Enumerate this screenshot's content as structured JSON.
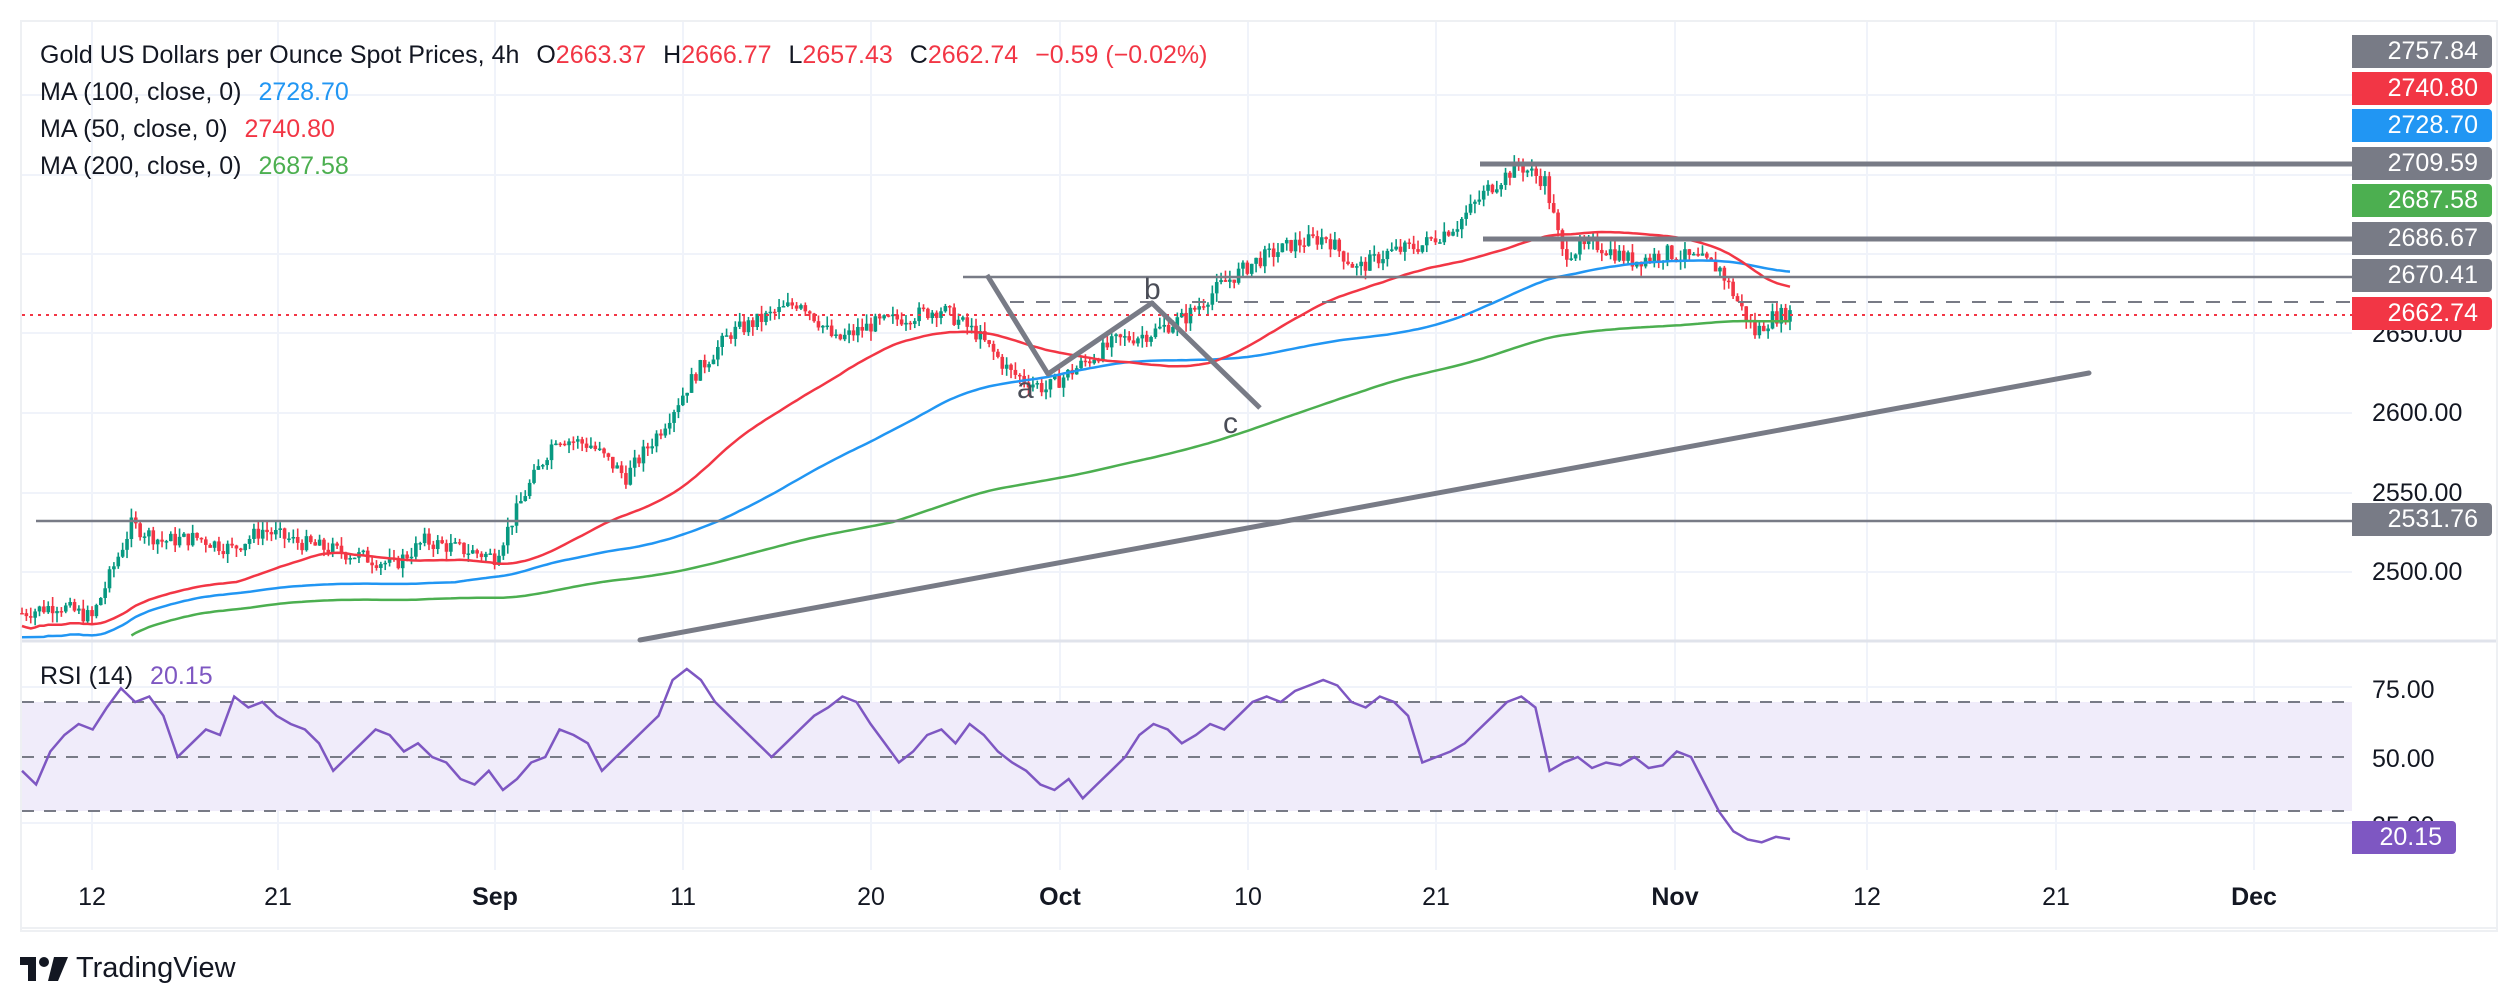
{
  "header": {
    "symbol_title": "Gold US Dollars per Ounce Spot Prices, 4h",
    "ohlc": [
      {
        "key": "O",
        "value": "2663.37"
      },
      {
        "key": "H",
        "value": "2666.77"
      },
      {
        "key": "L",
        "value": "2657.43"
      },
      {
        "key": "C",
        "value": "2662.74"
      }
    ],
    "change": "−0.59 (−0.02%)"
  },
  "indicators": [
    {
      "label": "MA (100, close, 0)",
      "value": "2728.70",
      "color": "#2196f3"
    },
    {
      "label": "MA (50, close, 0)",
      "value": "2740.80",
      "color": "#f23645"
    },
    {
      "label": "MA (200, close, 0)",
      "value": "2687.58",
      "color": "#4caf50"
    }
  ],
  "rsi": {
    "label": "RSI (14)",
    "value": "20.15",
    "color": "#7e57c2"
  },
  "colors": {
    "up": "#089981",
    "down": "#f23645",
    "drawing": "#787b86",
    "rsi_band": "#f0ecfa"
  },
  "price_tags": [
    {
      "value": "2757.84",
      "color": "#787b86"
    },
    {
      "value": "2740.80",
      "color": "#f23645"
    },
    {
      "value": "2728.70",
      "color": "#2196f3"
    },
    {
      "value": "2709.59",
      "color": "#787b86"
    },
    {
      "value": "2687.58",
      "color": "#4caf50"
    },
    {
      "value": "2686.67",
      "color": "#787b86"
    },
    {
      "value": "2670.41",
      "color": "#787b86"
    },
    {
      "value": "2662.74",
      "color": "#f23645"
    },
    {
      "value": "2531.76",
      "color": "#787b86"
    }
  ],
  "rsi_tag": {
    "value": "20.15",
    "color": "#7e57c2"
  },
  "pattern_labels": [
    "a",
    "b",
    "c"
  ],
  "branding": "TradingView",
  "chart_data": [
    {
      "type": "candlestick",
      "title": "Gold US Dollars per Ounce Spot Prices, 4h",
      "x_tick_labels": [
        "12",
        "21",
        "Sep",
        "11",
        "20",
        "Oct",
        "10",
        "21",
        "Nov",
        "12",
        "21",
        "Dec"
      ],
      "y_tick_labels": [
        "2650.00",
        "2600.00",
        "2550.00",
        "2500.00"
      ],
      "ylim": [
        2470,
        2760
      ],
      "grid": true,
      "last": {
        "open": 2663.37,
        "high": 2666.77,
        "low": 2657.43,
        "close": 2662.74,
        "change": -0.59,
        "change_pct": -0.02
      },
      "price_path": [
        [
          0,
          2475
        ],
        [
          8,
          2480
        ],
        [
          16,
          2472
        ],
        [
          25,
          2530
        ],
        [
          32,
          2520
        ],
        [
          40,
          2522
        ],
        [
          48,
          2515
        ],
        [
          55,
          2527
        ],
        [
          62,
          2520
        ],
        [
          70,
          2515
        ],
        [
          78,
          2510
        ],
        [
          85,
          2505
        ],
        [
          92,
          2520
        ],
        [
          100,
          2515
        ],
        [
          108,
          2510
        ],
        [
          115,
          2550
        ],
        [
          122,
          2585
        ],
        [
          130,
          2580
        ],
        [
          138,
          2560
        ],
        [
          146,
          2590
        ],
        [
          154,
          2625
        ],
        [
          162,
          2650
        ],
        [
          170,
          2660
        ],
        [
          178,
          2670
        ],
        [
          186,
          2645
        ],
        [
          194,
          2655
        ],
        [
          202,
          2660
        ],
        [
          210,
          2665
        ],
        [
          218,
          2650
        ],
        [
          226,
          2625
        ],
        [
          234,
          2615
        ],
        [
          242,
          2630
        ],
        [
          250,
          2645
        ],
        [
          258,
          2650
        ],
        [
          266,
          2660
        ],
        [
          274,
          2680
        ],
        [
          282,
          2695
        ],
        [
          290,
          2705
        ],
        [
          298,
          2710
        ],
        [
          305,
          2690
        ],
        [
          312,
          2700
        ],
        [
          320,
          2705
        ],
        [
          328,
          2718
        ],
        [
          335,
          2740
        ],
        [
          342,
          2755
        ],
        [
          348,
          2745
        ],
        [
          352,
          2700
        ],
        [
          360,
          2705
        ],
        [
          368,
          2695
        ],
        [
          376,
          2700
        ],
        [
          384,
          2695
        ],
        [
          388,
          2690
        ],
        [
          392,
          2670
        ],
        [
          396,
          2650
        ],
        [
          400,
          2660
        ],
        [
          404,
          2662.74
        ]
      ],
      "series": [
        {
          "name": "MA (100, close, 0)",
          "last": 2728.7,
          "color": "#2196f3"
        },
        {
          "name": "MA (50, close, 0)",
          "last": 2740.8,
          "color": "#f23645"
        },
        {
          "name": "MA (200, close, 0)",
          "last": 2687.58,
          "color": "#4caf50"
        }
      ],
      "horizontal_levels": [
        2709.59,
        2686.67,
        2670.41,
        2531.76
      ],
      "dashed_level": "approx 2667",
      "current_price_line": 2662.74,
      "trendline": {
        "from": "late Aug ~2470",
        "to": "late Nov ~2625"
      },
      "pattern": {
        "points": [
          "start ~2670",
          "a ~2625",
          "b ~2668",
          "c ~2605"
        ],
        "labels": [
          "a",
          "b",
          "c"
        ]
      }
    },
    {
      "type": "line",
      "title": "RSI (14)",
      "y_tick_labels": [
        "75.00",
        "50.00",
        "25.00"
      ],
      "levels": [
        70,
        50,
        30
      ],
      "ylim": [
        10,
        90
      ],
      "last": 20.15,
      "values": [
        45,
        40,
        52,
        58,
        62,
        60,
        68,
        75,
        70,
        72,
        65,
        50,
        55,
        60,
        58,
        72,
        68,
        70,
        65,
        62,
        60,
        55,
        45,
        50,
        55,
        60,
        58,
        52,
        55,
        50,
        48,
        42,
        40,
        45,
        38,
        42,
        48,
        50,
        60,
        58,
        55,
        45,
        50,
        55,
        60,
        65,
        78,
        82,
        78,
        70,
        65,
        60,
        55,
        50,
        55,
        60,
        65,
        68,
        72,
        70,
        62,
        55,
        48,
        52,
        58,
        60,
        55,
        62,
        58,
        52,
        48,
        45,
        40,
        38,
        42,
        35,
        40,
        45,
        50,
        58,
        62,
        60,
        55,
        58,
        62,
        60,
        65,
        70,
        72,
        70,
        74,
        76,
        78,
        76,
        70,
        68,
        72,
        70,
        65,
        48,
        50,
        52,
        55,
        60,
        65,
        70,
        72,
        68,
        45,
        48,
        50,
        46,
        48,
        47,
        50,
        46,
        47,
        52,
        50,
        40,
        30,
        23,
        20,
        19,
        21,
        20.15
      ]
    }
  ]
}
